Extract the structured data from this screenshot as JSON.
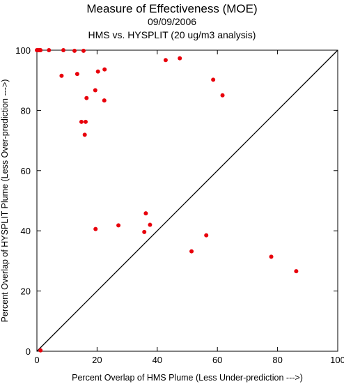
{
  "chart_data": {
    "type": "scatter",
    "title": "Measure of Effectiveness (MOE)",
    "subtitle": "09/09/2006",
    "subtitle2": "HMS vs. HYSPLIT  (20 ug/m3 analysis)",
    "xlabel": "Percent Overlap of HMS Plume (Less Under-prediction --->)",
    "ylabel": "Percent Overlap of HYSPLIT Plume (Less Over-prediction --->)",
    "xlim": [
      0,
      100
    ],
    "ylim": [
      0,
      100
    ],
    "xticks": [
      "0",
      "20",
      "40",
      "60",
      "80",
      "100"
    ],
    "yticks": [
      "0",
      "20",
      "40",
      "60",
      "80",
      "100"
    ],
    "grid": false,
    "marker_color": "#e8000b",
    "reference_line": "diagonal y = x",
    "points": [
      {
        "x": 0.0,
        "y": 100
      },
      {
        "x": 0.4,
        "y": 100
      },
      {
        "x": 0.8,
        "y": 100
      },
      {
        "x": 1.2,
        "y": 100
      },
      {
        "x": 4.0,
        "y": 100
      },
      {
        "x": 8.8,
        "y": 100
      },
      {
        "x": 12.5,
        "y": 99.8
      },
      {
        "x": 15.5,
        "y": 99.8
      },
      {
        "x": 8.2,
        "y": 91.5
      },
      {
        "x": 13.4,
        "y": 92.1
      },
      {
        "x": 20.3,
        "y": 92.9
      },
      {
        "x": 22.5,
        "y": 93.6
      },
      {
        "x": 42.8,
        "y": 96.7
      },
      {
        "x": 47.5,
        "y": 97.3
      },
      {
        "x": 58.6,
        "y": 90.2
      },
      {
        "x": 61.7,
        "y": 85.0
      },
      {
        "x": 19.4,
        "y": 86.7
      },
      {
        "x": 16.5,
        "y": 84.1
      },
      {
        "x": 22.4,
        "y": 83.3
      },
      {
        "x": 14.8,
        "y": 76.2
      },
      {
        "x": 16.2,
        "y": 76.2
      },
      {
        "x": 15.9,
        "y": 71.9
      },
      {
        "x": 36.2,
        "y": 45.8
      },
      {
        "x": 27.1,
        "y": 41.8
      },
      {
        "x": 37.6,
        "y": 42.0
      },
      {
        "x": 19.5,
        "y": 40.6
      },
      {
        "x": 35.7,
        "y": 39.6
      },
      {
        "x": 56.3,
        "y": 38.5
      },
      {
        "x": 51.4,
        "y": 33.2
      },
      {
        "x": 77.9,
        "y": 31.4
      },
      {
        "x": 86.2,
        "y": 26.6
      },
      {
        "x": 1.2,
        "y": 0.3
      }
    ]
  }
}
